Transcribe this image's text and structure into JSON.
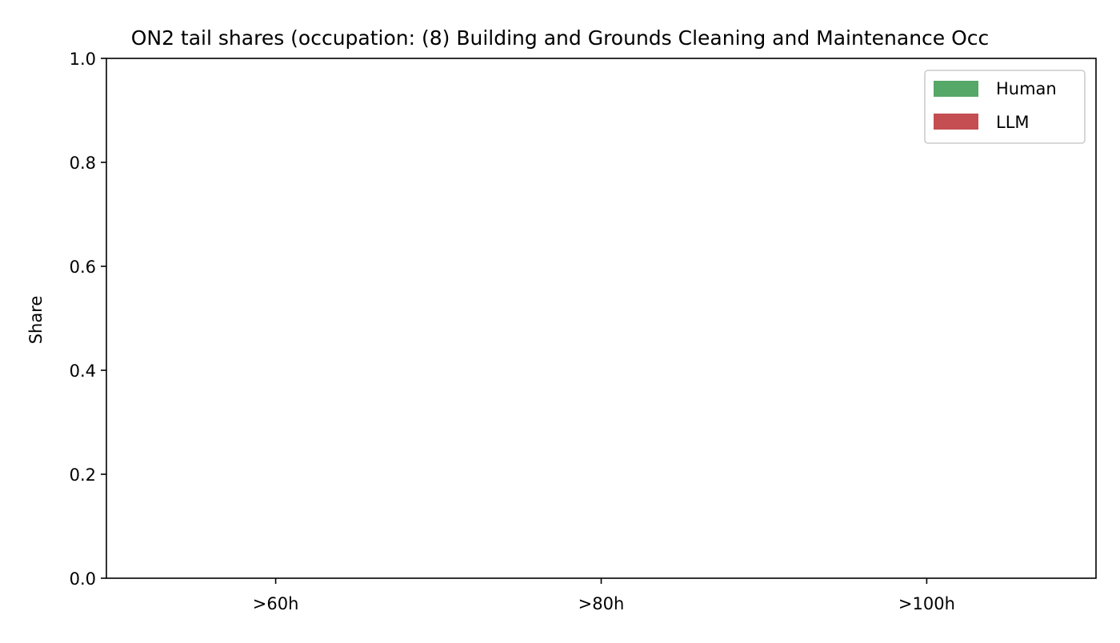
{
  "chart_data": {
    "type": "bar",
    "title": "ON2 tail shares (occupation: (8) Building and Grounds Cleaning and Maintenance Occ",
    "xlabel": "",
    "ylabel": "Share",
    "categories": [
      ">60h",
      ">80h",
      ">100h"
    ],
    "series": [
      {
        "name": "Human",
        "color": "#55a868",
        "values": [
          0,
          0,
          0
        ]
      },
      {
        "name": "LLM",
        "color": "#c44e52",
        "values": [
          0,
          0,
          0
        ]
      }
    ],
    "ylim": [
      0,
      1
    ],
    "yticks": [
      "0.0",
      "0.2",
      "0.4",
      "0.6",
      "0.8",
      "1.0"
    ],
    "grid": false,
    "legend_position": "top-right"
  }
}
